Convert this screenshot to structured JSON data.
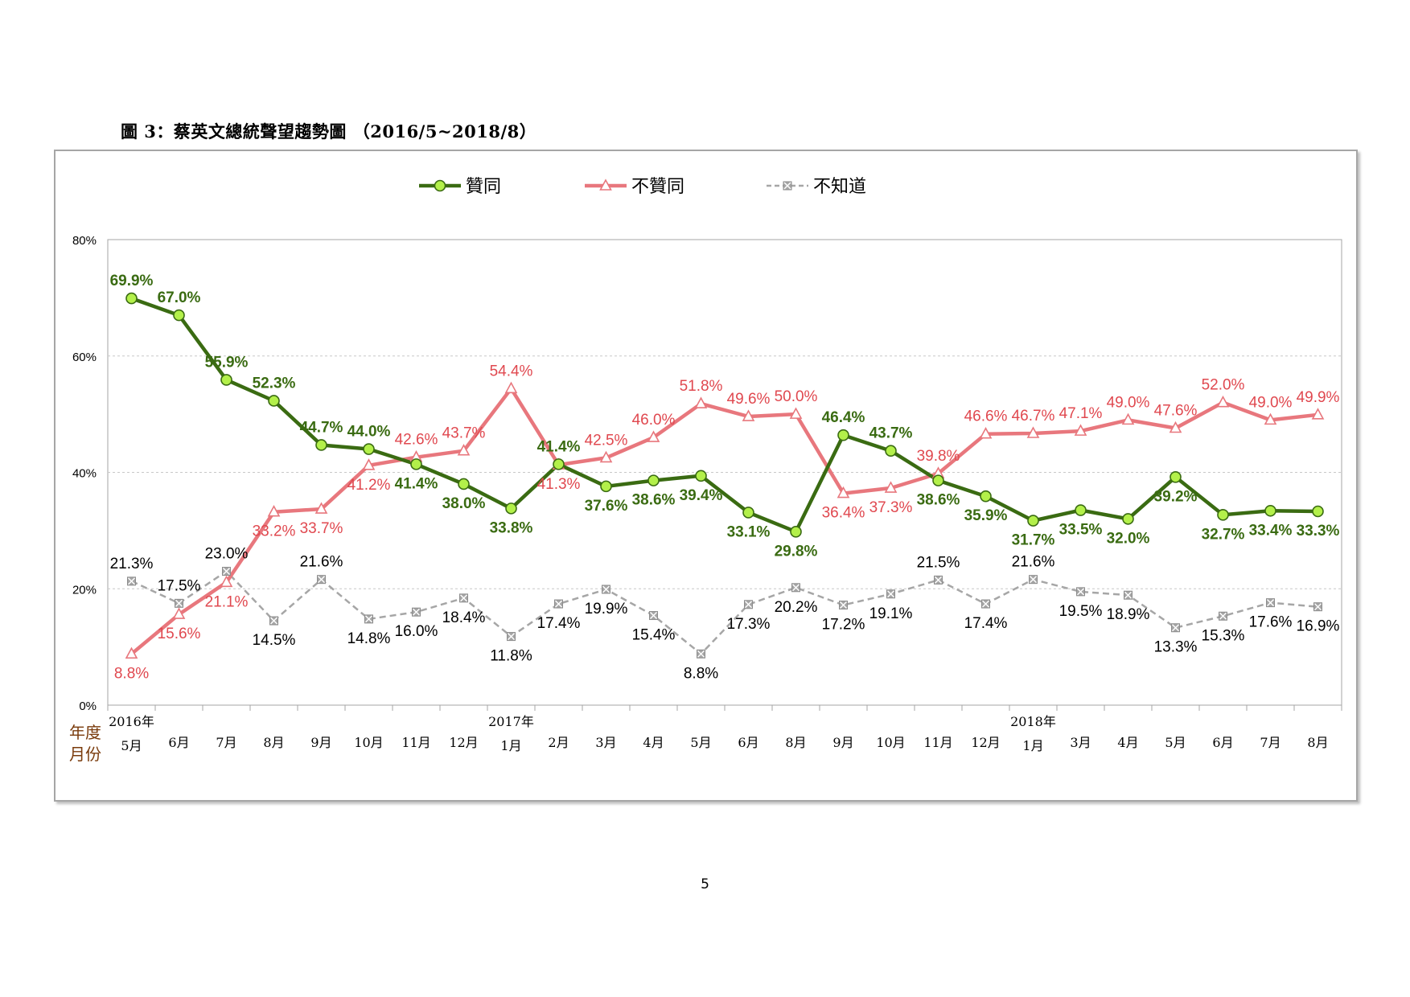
{
  "page": {
    "title": "圖 3：蔡英文總統聲望趨勢圖 （2016/5~2018/8）",
    "page_number": "5"
  },
  "colors": {
    "approve": "#3a6b12",
    "approve_marker": "#b3f04a",
    "disapprove": "#e8777d",
    "unknown": "#a6a6a6",
    "unknown_marker": "#a6a6a6",
    "month_label_color": "#7a3b0c"
  },
  "chart_data": {
    "type": "line",
    "ylim": [
      0,
      80
    ],
    "yticks": [
      "0%",
      "20%",
      "40%",
      "60%",
      "80%"
    ],
    "ytick_values": [
      0,
      20,
      40,
      60,
      80
    ],
    "grid": true,
    "legend_placement": "top-center",
    "axis_row_label_year": "年度",
    "axis_row_label_month": "月份",
    "categories": [
      "5月",
      "6月",
      "7月",
      "8月",
      "9月",
      "10月",
      "11月",
      "12月",
      "1月",
      "2月",
      "3月",
      "4月",
      "5月",
      "6月",
      "8月",
      "9月",
      "10月",
      "11月",
      "12月",
      "1月",
      "3月",
      "4月",
      "5月",
      "6月",
      "7月",
      "8月"
    ],
    "year_labels": [
      {
        "index": 0,
        "label": "2016年"
      },
      {
        "index": 8,
        "label": "2017年"
      },
      {
        "index": 19,
        "label": "2018年"
      }
    ],
    "series": [
      {
        "name": "贊同",
        "values": [
          69.9,
          67.0,
          55.9,
          52.3,
          44.7,
          44.0,
          41.4,
          38.0,
          33.8,
          41.4,
          37.6,
          38.6,
          39.4,
          33.1,
          29.8,
          46.4,
          43.7,
          38.6,
          35.9,
          31.7,
          33.5,
          32.0,
          39.2,
          32.7,
          33.4,
          33.3
        ],
        "labels": [
          "69.9%",
          "67.0%",
          "55.9%",
          "52.3%",
          "44.7%",
          "44.0%",
          "41.4%",
          "38.0%",
          "33.8%",
          "41.4%",
          "37.6%",
          "38.6%",
          "39.4%",
          "33.1%",
          "29.8%",
          "46.4%",
          "43.7%",
          "38.6%",
          "35.9%",
          "31.7%",
          "33.5%",
          "32.0%",
          "39.2%",
          "32.7%",
          "33.4%",
          "33.3%"
        ]
      },
      {
        "name": "不贊同",
        "values": [
          8.8,
          15.6,
          21.1,
          33.2,
          33.7,
          41.2,
          42.6,
          43.7,
          54.4,
          41.3,
          42.5,
          46.0,
          51.8,
          49.6,
          50.0,
          36.4,
          37.3,
          39.8,
          46.6,
          46.7,
          47.1,
          49.0,
          47.6,
          52.0,
          49.0,
          49.9
        ],
        "labels": [
          "8.8%",
          "15.6%",
          "21.1%",
          "33.2%",
          "33.7%",
          "41.2%",
          "42.6%",
          "43.7%",
          "54.4%",
          "41.3%",
          "42.5%",
          "46.0%",
          "51.8%",
          "49.6%",
          "50.0%",
          "36.4%",
          "37.3%",
          "39.8%",
          "46.6%",
          "46.7%",
          "47.1%",
          "49.0%",
          "47.6%",
          "52.0%",
          "49.0%",
          "49.9%"
        ]
      },
      {
        "name": "不知道",
        "values": [
          21.3,
          17.5,
          23.0,
          14.5,
          21.6,
          14.8,
          16.0,
          18.4,
          11.8,
          17.4,
          19.9,
          15.4,
          8.8,
          17.3,
          20.2,
          17.2,
          19.1,
          21.5,
          17.4,
          21.6,
          19.5,
          18.9,
          13.3,
          15.3,
          17.6,
          16.9
        ],
        "labels": [
          "21.3%",
          "17.5%",
          "23.0%",
          "14.5%",
          "21.6%",
          "14.8%",
          "16.0%",
          "18.4%",
          "11.8%",
          "17.4%",
          "19.9%",
          "15.4%",
          "8.8%",
          "17.3%",
          "20.2%",
          "17.2%",
          "19.1%",
          "21.5%",
          "17.4%",
          "21.6%",
          "19.5%",
          "18.9%",
          "13.3%",
          "15.3%",
          "17.6%",
          "16.9%"
        ]
      }
    ]
  }
}
